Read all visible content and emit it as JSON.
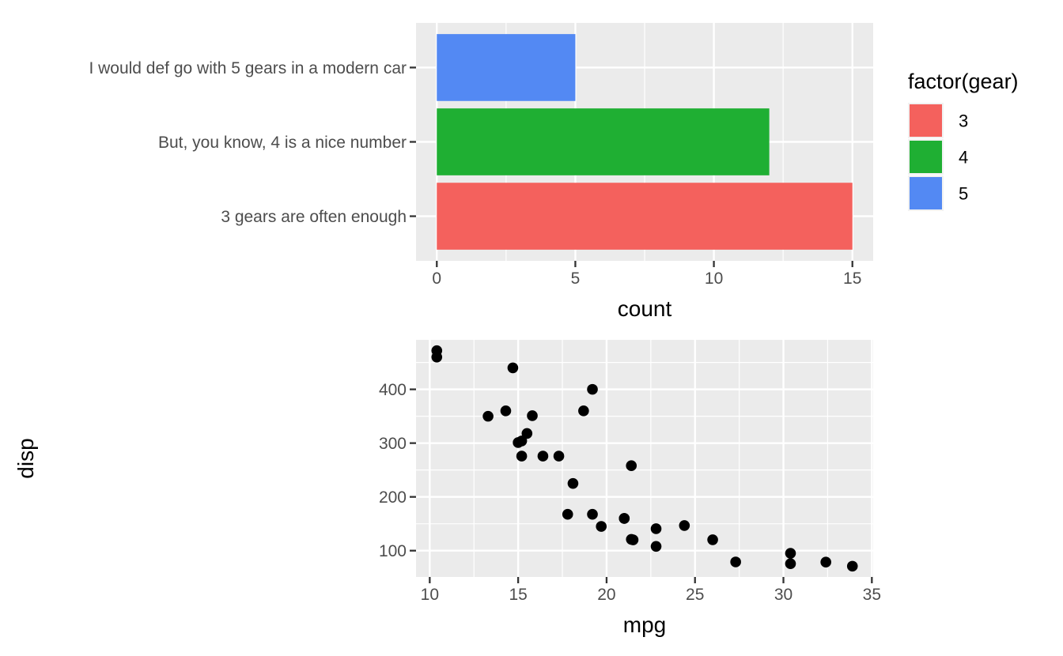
{
  "figure": {
    "background": "#FFFFFF",
    "panel_background": "#EBEBEB",
    "gridline_color": "#FFFFFF",
    "tick_color": "#333333",
    "axis_text_color": "#4D4D4D",
    "axis_title_color": "#000000"
  },
  "charts": [
    {
      "name": "gear-count-bar-chart",
      "chart_data": {
        "type": "bar",
        "orientation": "horizontal",
        "categories": [
          "I would def go with 5 gears in a modern car",
          "But, you know, 4 is a nice number",
          "3 gears are often enough"
        ],
        "bars": [
          {
            "category": "I would def go with 5 gears in a modern car",
            "gear": "5",
            "count": 5,
            "color": "#5389F3"
          },
          {
            "category": "But, you know, 4 is a nice number",
            "gear": "4",
            "count": 12,
            "color": "#1FAF33"
          },
          {
            "category": "3 gears are often enough",
            "gear": "3",
            "count": 15,
            "color": "#F4615D"
          }
        ],
        "xlabel": "count",
        "x_ticks": [
          0,
          5,
          10,
          15
        ],
        "x_minor_ticks": [
          2.5,
          7.5,
          12.5
        ],
        "xlim": [
          -0.75,
          15.75
        ],
        "grid": true,
        "legend": {
          "title": "factor(gear)",
          "position": "right",
          "entries": [
            {
              "label": "3",
              "color": "#F4615D"
            },
            {
              "label": "4",
              "color": "#1FAF33"
            },
            {
              "label": "5",
              "color": "#5389F3"
            }
          ]
        }
      }
    },
    {
      "name": "mpg-disp-scatter-chart",
      "chart_data": {
        "type": "scatter",
        "xlabel": "mpg",
        "ylabel": "disp",
        "x_ticks": [
          10,
          15,
          20,
          25,
          30,
          35
        ],
        "x_minor_ticks": [
          12.5,
          17.5,
          22.5,
          27.5,
          32.5
        ],
        "y_ticks": [
          100,
          200,
          300,
          400
        ],
        "y_minor_ticks": [
          150,
          250,
          350,
          450
        ],
        "xlim": [
          9.225,
          35.075
        ],
        "ylim": [
          51.06,
          492.04
        ],
        "grid": true,
        "point_color": "#000000",
        "point_radius": 6.8,
        "points": [
          {
            "mpg": 21.0,
            "disp": 160.0
          },
          {
            "mpg": 21.0,
            "disp": 160.0
          },
          {
            "mpg": 22.8,
            "disp": 108.0
          },
          {
            "mpg": 21.4,
            "disp": 258.0
          },
          {
            "mpg": 18.7,
            "disp": 360.0
          },
          {
            "mpg": 18.1,
            "disp": 225.0
          },
          {
            "mpg": 14.3,
            "disp": 360.0
          },
          {
            "mpg": 24.4,
            "disp": 146.7
          },
          {
            "mpg": 22.8,
            "disp": 140.8
          },
          {
            "mpg": 19.2,
            "disp": 167.6
          },
          {
            "mpg": 17.8,
            "disp": 167.6
          },
          {
            "mpg": 16.4,
            "disp": 275.8
          },
          {
            "mpg": 17.3,
            "disp": 275.8
          },
          {
            "mpg": 15.2,
            "disp": 275.8
          },
          {
            "mpg": 10.4,
            "disp": 472.0
          },
          {
            "mpg": 10.4,
            "disp": 460.0
          },
          {
            "mpg": 14.7,
            "disp": 440.0
          },
          {
            "mpg": 32.4,
            "disp": 78.7
          },
          {
            "mpg": 30.4,
            "disp": 75.7
          },
          {
            "mpg": 33.9,
            "disp": 71.1
          },
          {
            "mpg": 21.5,
            "disp": 120.1
          },
          {
            "mpg": 15.5,
            "disp": 318.0
          },
          {
            "mpg": 15.2,
            "disp": 304.0
          },
          {
            "mpg": 13.3,
            "disp": 350.0
          },
          {
            "mpg": 19.2,
            "disp": 400.0
          },
          {
            "mpg": 27.3,
            "disp": 79.0
          },
          {
            "mpg": 26.0,
            "disp": 120.3
          },
          {
            "mpg": 30.4,
            "disp": 95.1
          },
          {
            "mpg": 15.8,
            "disp": 351.0
          },
          {
            "mpg": 19.7,
            "disp": 145.0
          },
          {
            "mpg": 15.0,
            "disp": 301.0
          },
          {
            "mpg": 21.4,
            "disp": 121.0
          }
        ]
      }
    }
  ]
}
